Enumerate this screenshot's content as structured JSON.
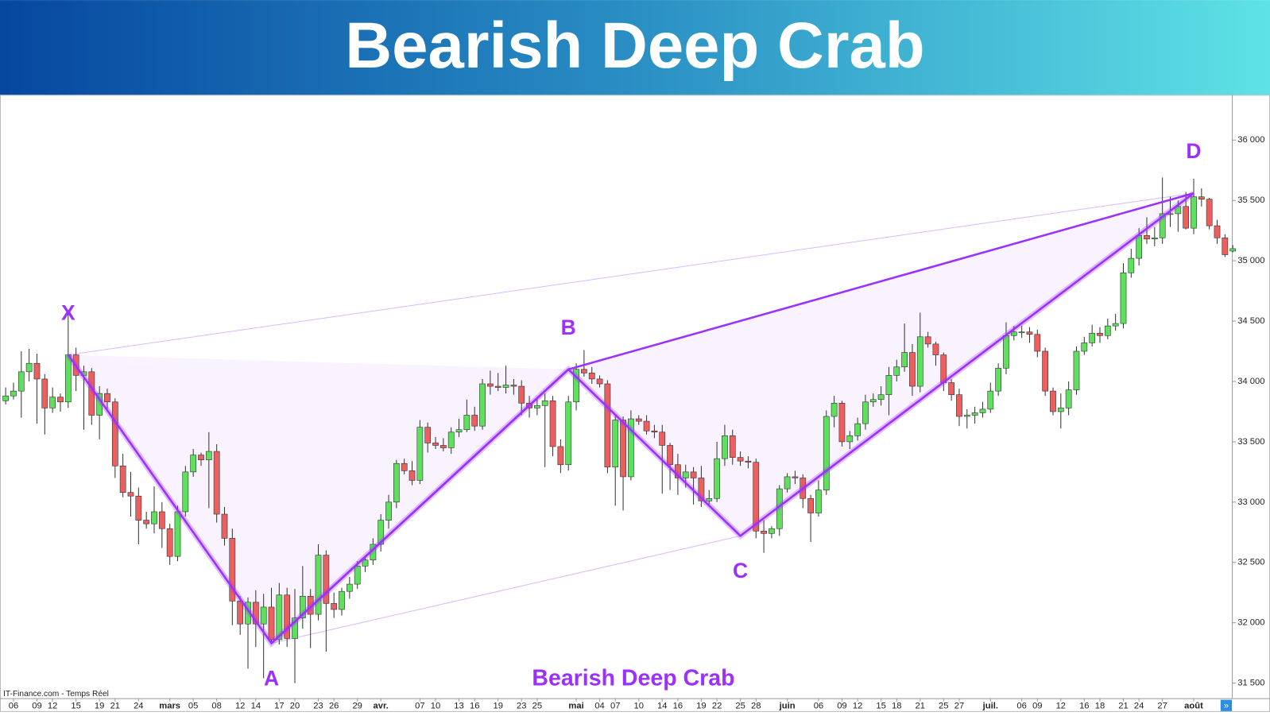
{
  "title": "Bearish Deep Crab",
  "chart_data": {
    "type": "candlestick",
    "annotation": "Bearish Deep Crab",
    "source": "IT-Finance.com - Temps Réel",
    "up_color": "#5ee05e",
    "down_color": "#ec5f5f",
    "pattern_color": "#9b30ff",
    "ylim": [
      31375,
      36375
    ],
    "yticks": [
      {
        "value": 31500,
        "label": "31 500"
      },
      {
        "value": 32000,
        "label": "32 000"
      },
      {
        "value": 32500,
        "label": "32 500"
      },
      {
        "value": 33000,
        "label": "33 000"
      },
      {
        "value": 33500,
        "label": "33 500"
      },
      {
        "value": 34000,
        "label": "34 000"
      },
      {
        "value": 34500,
        "label": "34 500"
      },
      {
        "value": 35000,
        "label": "35 000"
      },
      {
        "value": 35500,
        "label": "35 500"
      },
      {
        "value": 36000,
        "label": "36 000"
      }
    ],
    "categories": [
      null,
      "06",
      null,
      null,
      "09",
      null,
      "12",
      null,
      null,
      "15",
      null,
      null,
      "19",
      null,
      "21",
      null,
      null,
      "24",
      null,
      null,
      null,
      "mars",
      null,
      null,
      "05",
      null,
      null,
      "08",
      null,
      null,
      "12",
      null,
      "14",
      null,
      null,
      "17",
      null,
      "20",
      null,
      null,
      "23",
      null,
      "26",
      null,
      null,
      "29",
      null,
      null,
      "avr.",
      null,
      null,
      null,
      null,
      "07",
      null,
      "10",
      null,
      null,
      "13",
      null,
      "16",
      null,
      null,
      "19",
      null,
      null,
      "23",
      null,
      "25",
      null,
      null,
      null,
      null,
      "mai",
      null,
      null,
      "04",
      null,
      "07",
      null,
      null,
      "10",
      null,
      null,
      "14",
      null,
      "16",
      null,
      null,
      "19",
      null,
      "22",
      null,
      null,
      "25",
      null,
      "28",
      null,
      null,
      null,
      "juin",
      null,
      null,
      null,
      "06",
      null,
      null,
      "09",
      null,
      "12",
      null,
      null,
      "15",
      null,
      "18",
      null,
      null,
      "21",
      null,
      null,
      "25",
      null,
      "27",
      null,
      null,
      null,
      "juil.",
      null,
      null,
      null,
      "06",
      null,
      "09",
      null,
      null,
      "12",
      null,
      null,
      "16",
      null,
      "18",
      null,
      null,
      "21",
      null,
      "24",
      null,
      null,
      "27",
      null,
      null,
      null,
      "août",
      null,
      null,
      null,
      null,
      null
    ],
    "open": [
      33840,
      33880,
      33920,
      34080,
      34150,
      34020,
      33780,
      33870,
      33830,
      34220,
      34050,
      34080,
      33720,
      33900,
      33830,
      33300,
      33080,
      33050,
      32850,
      32820,
      32920,
      32780,
      32550,
      32920,
      33250,
      33390,
      33350,
      33420,
      32900,
      32700,
      32180,
      31990,
      32170,
      31990,
      32130,
      31860,
      32230,
      31870,
      32040,
      32220,
      32070,
      32560,
      32160,
      32110,
      32260,
      32320,
      32470,
      32520,
      32650,
      32850,
      33000,
      33320,
      33260,
      33180,
      33620,
      33490,
      33470,
      33450,
      33580,
      33600,
      33720,
      33630,
      33980,
      33960,
      33950,
      33970,
      33960,
      33820,
      33780,
      33800,
      33840,
      33460,
      33310,
      33830,
      34100,
      34070,
      34020,
      33980,
      33290,
      33680,
      33210,
      33690,
      33670,
      33590,
      33580,
      33470,
      33310,
      33200,
      33250,
      33200,
      33010,
      33030,
      33360,
      33550,
      33370,
      33340,
      33330,
      32760,
      32740,
      32780,
      33110,
      33210,
      33200,
      33030,
      32910,
      33100,
      33710,
      33820,
      33500,
      33550,
      33650,
      33830,
      33850,
      33890,
      34050,
      34120,
      34240,
      33960,
      34370,
      34310,
      34220,
      33990,
      33890,
      33710,
      33720,
      33740,
      33770,
      33920,
      34110,
      34380,
      34410,
      34410,
      34390,
      34250,
      33920,
      33750,
      33780,
      33930,
      34250,
      34320,
      34400,
      34380,
      34460,
      34480,
      34900,
      35020,
      35210,
      35180,
      35190,
      35390,
      35390,
      35450,
      35270,
      35530,
      35510,
      35290,
      35190,
      35080
    ],
    "high": [
      33950,
      33990,
      34250,
      34270,
      34230,
      34060,
      33950,
      33900,
      34570,
      34280,
      34130,
      34110,
      33960,
      33940,
      33860,
      33400,
      33250,
      33120,
      32920,
      33130,
      33000,
      32820,
      32970,
      33300,
      33440,
      33410,
      33580,
      33480,
      32960,
      32780,
      32220,
      32210,
      32270,
      32240,
      32290,
      32330,
      32290,
      32280,
      32470,
      32280,
      32650,
      32600,
      32250,
      32290,
      32380,
      32510,
      32550,
      32700,
      32900,
      33060,
      33350,
      33360,
      33340,
      33680,
      33660,
      33540,
      33530,
      33620,
      33690,
      33850,
      33790,
      34020,
      34090,
      34070,
      34130,
      34020,
      34010,
      33880,
      33870,
      33900,
      33880,
      33520,
      33880,
      34150,
      34260,
      34120,
      34050,
      34010,
      33720,
      33710,
      33760,
      33720,
      33720,
      33640,
      33640,
      33490,
      33400,
      33310,
      33290,
      33300,
      33100,
      33500,
      33640,
      33600,
      33420,
      33380,
      33360,
      32850,
      32800,
      33140,
      33240,
      33260,
      33230,
      33060,
      33180,
      33760,
      33880,
      33840,
      33590,
      33700,
      33890,
      33900,
      33960,
      34120,
      34180,
      34480,
      34310,
      34570,
      34410,
      34330,
      34240,
      34020,
      33940,
      33770,
      33790,
      33830,
      33990,
      34150,
      34490,
      34460,
      34460,
      34450,
      34430,
      34280,
      33950,
      33900,
      34000,
      34290,
      34370,
      34470,
      34450,
      34520,
      34560,
      34980,
      35100,
      35270,
      35360,
      35280,
      35690,
      35530,
      35500,
      35570,
      35680,
      35600,
      35520,
      35340,
      35220,
      35130
    ],
    "low": [
      33810,
      33850,
      33700,
      34000,
      33650,
      33560,
      33740,
      33750,
      33780,
      33920,
      33600,
      33640,
      33520,
      33770,
      33200,
      33040,
      32880,
      32650,
      32780,
      32740,
      32620,
      32480,
      32510,
      32880,
      33210,
      33300,
      32950,
      32830,
      32640,
      31980,
      31900,
      31620,
      31800,
      31540,
      31820,
      31820,
      31800,
      31500,
      31950,
      31790,
      32020,
      31760,
      32040,
      32060,
      32200,
      32280,
      32420,
      32480,
      32590,
      32780,
      32950,
      33230,
      33140,
      33150,
      33410,
      33440,
      33420,
      33400,
      33540,
      33580,
      33590,
      33600,
      33890,
      33920,
      33900,
      33890,
      33720,
      33700,
      33720,
      33290,
      33380,
      33240,
      33260,
      33760,
      34040,
      33980,
      33950,
      33240,
      32970,
      32930,
      33180,
      33640,
      33560,
      33530,
      33070,
      33100,
      33060,
      33120,
      32980,
      32960,
      32960,
      33000,
      33300,
      33310,
      33300,
      33280,
      32700,
      32580,
      32700,
      32720,
      33080,
      33150,
      32950,
      32670,
      32880,
      33060,
      33620,
      33460,
      33440,
      33510,
      33600,
      33790,
      33800,
      33720,
      34000,
      34080,
      33880,
      33910,
      34280,
      34130,
      33920,
      33840,
      33630,
      33610,
      33650,
      33700,
      33740,
      33880,
      34060,
      34340,
      34360,
      34320,
      34200,
      33880,
      33720,
      33610,
      33720,
      33890,
      34220,
      34290,
      34320,
      34350,
      34420,
      34440,
      34860,
      34960,
      35140,
      35120,
      35140,
      35280,
      35240,
      35260,
      35220,
      35450,
      35260,
      35140,
      35030,
      35070
    ],
    "close": [
      33880,
      33920,
      34080,
      34150,
      34020,
      33780,
      33870,
      33830,
      34220,
      34050,
      34080,
      33720,
      33900,
      33830,
      33300,
      33080,
      33050,
      32850,
      32820,
      32920,
      32780,
      32550,
      32920,
      33250,
      33390,
      33350,
      33420,
      32900,
      32700,
      32180,
      31990,
      32170,
      31990,
      32130,
      31860,
      32230,
      31870,
      32040,
      32220,
      32070,
      32560,
      32160,
      32110,
      32260,
      32320,
      32470,
      32520,
      32650,
      32850,
      33000,
      33320,
      33260,
      33180,
      33620,
      33490,
      33470,
      33450,
      33580,
      33600,
      33720,
      33630,
      33980,
      33960,
      33950,
      33970,
      33960,
      33820,
      33780,
      33800,
      33840,
      33460,
      33310,
      33830,
      34100,
      34070,
      34020,
      33980,
      33290,
      33680,
      33210,
      33690,
      33670,
      33590,
      33580,
      33470,
      33310,
      33200,
      33250,
      33200,
      33010,
      33030,
      33360,
      33550,
      33370,
      33340,
      33330,
      32760,
      32740,
      32780,
      33110,
      33210,
      33200,
      33030,
      32910,
      33100,
      33710,
      33820,
      33500,
      33550,
      33650,
      33830,
      33850,
      33890,
      34050,
      34120,
      34240,
      33960,
      34370,
      34310,
      34220,
      33990,
      33890,
      33710,
      33720,
      33740,
      33770,
      33920,
      34110,
      34380,
      34410,
      34410,
      34390,
      34250,
      33920,
      33750,
      33780,
      33930,
      34250,
      34320,
      34400,
      34380,
      34460,
      34480,
      34900,
      35020,
      35210,
      35180,
      35190,
      35390,
      35390,
      35450,
      35270,
      35530,
      35510,
      35290,
      35190,
      35050,
      35100
    ],
    "points": [
      {
        "label": "X",
        "index": 8,
        "value": 34220
      },
      {
        "label": "A",
        "index": 34,
        "value": 31830
      },
      {
        "label": "B",
        "index": 72,
        "value": 34100
      },
      {
        "label": "C",
        "index": 94,
        "value": 32720
      },
      {
        "label": "D",
        "index": 152,
        "value": 35560
      }
    ]
  }
}
